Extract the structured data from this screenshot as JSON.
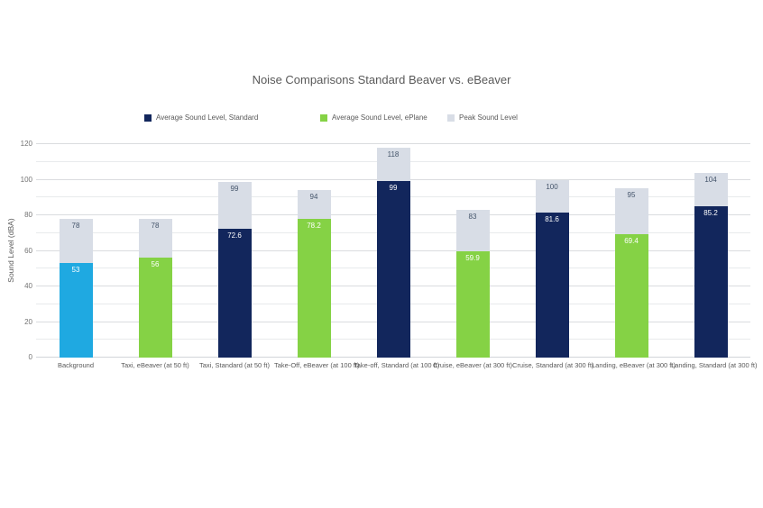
{
  "chart_data": {
    "type": "bar",
    "title": "Noise Comparisons Standard Beaver vs. eBeaver",
    "ylabel": "Sound Level (dBA)",
    "xlabel": "",
    "ylim": [
      0,
      120
    ],
    "yticks": [
      0,
      20,
      40,
      60,
      80,
      100,
      120
    ],
    "minor_grid_step": 10,
    "grid": true,
    "legend_position": "top",
    "legend": [
      {
        "label": "Average Sound Level, Standard",
        "color": "#12265C"
      },
      {
        "label": "Average Sound Level, ePlane",
        "color": "#85D245"
      },
      {
        "label": "Peak Sound Level",
        "color": "#D8DDE6"
      }
    ],
    "categories": [
      "Background",
      "Taxi, eBeaver (at 50 ft)",
      "Taxi, Standard (at 50 ft)",
      "Take-Off, eBeaver (at 100 ft)",
      "Take-off, Standard (at 100 ft)",
      "Cruise, eBeaver (at 300 ft)",
      "Cruise, Standard (at 300 ft)",
      "Landing, eBeaver (at 300 ft)",
      "Landing, Standard (at 300 ft)"
    ],
    "series": [
      {
        "name": "Average Sound Level",
        "values": [
          53,
          56,
          72.6,
          78.2,
          99,
          59.9,
          81.6,
          69.4,
          85.2
        ],
        "colors": [
          "#1FA9E1",
          "#85D245",
          "#12265C",
          "#85D245",
          "#12265C",
          "#85D245",
          "#12265C",
          "#85D245",
          "#12265C"
        ],
        "label_color": "#FFFFFF"
      },
      {
        "name": "Peak Sound Level",
        "values": [
          78,
          78,
          99,
          94,
          118,
          83,
          100,
          95,
          104
        ],
        "color": "#D8DDE6",
        "label_color": "#44546A"
      }
    ]
  },
  "colors": {
    "title_text": "#595959",
    "axis_text": "#737373",
    "grid_minor": "#E8EAEC",
    "grid_major": "#DADCDF",
    "baseline": "#D2D5D9"
  }
}
